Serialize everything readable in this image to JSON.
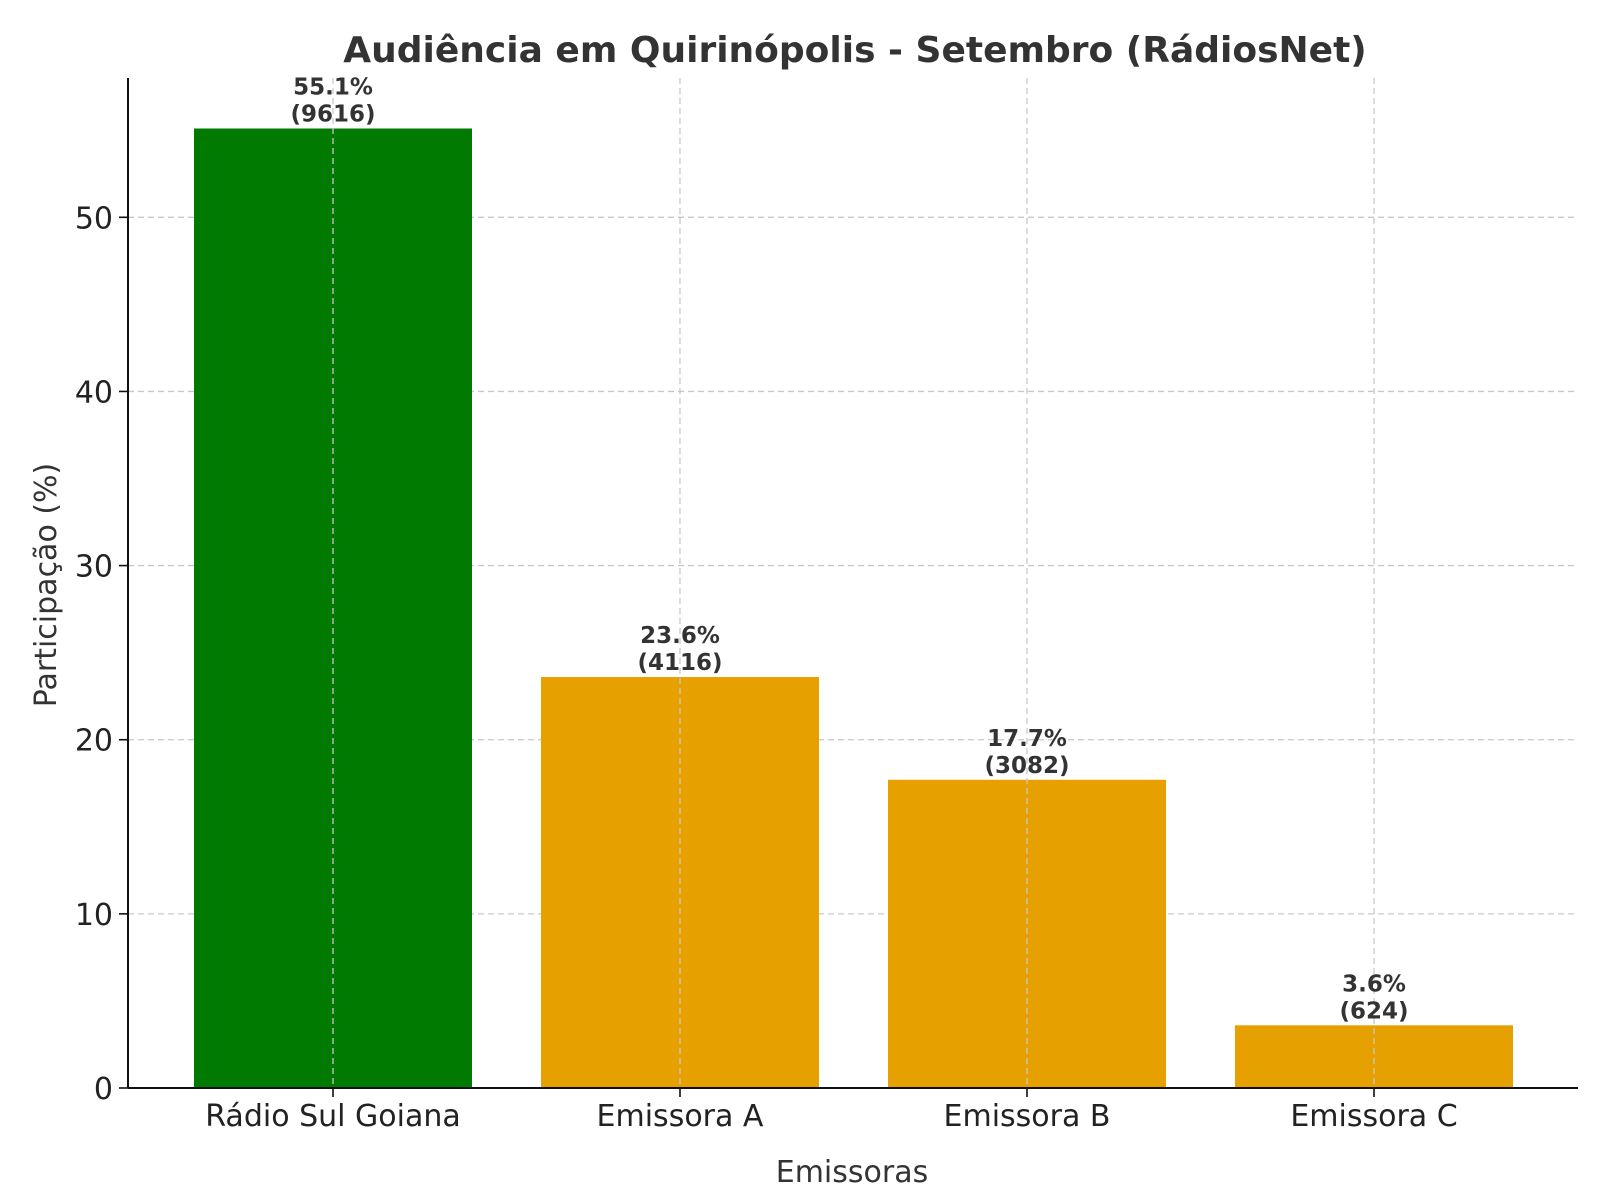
{
  "chart_data": {
    "type": "bar",
    "title": "Audiência em Quirinópolis - Setembro (RádiosNet)",
    "xlabel": "Emissoras",
    "ylabel": "Participação (%)",
    "categories": [
      "Rádio Sul Goiana",
      "Emissora A",
      "Emissora B",
      "Emissora C"
    ],
    "values": [
      55.1,
      23.6,
      17.7,
      3.6
    ],
    "value_labels": [
      "55.1%",
      "23.6%",
      "17.7%",
      "3.6%"
    ],
    "count_labels": [
      "(9616)",
      "(4116)",
      "(3082)",
      "(624)"
    ],
    "colors": [
      "#007a00",
      "#e6a000",
      "#e6a000",
      "#e6a000"
    ],
    "y_ticks": [
      0,
      10,
      20,
      30,
      40,
      50
    ],
    "ylim": [
      0,
      58
    ],
    "grid": true
  }
}
